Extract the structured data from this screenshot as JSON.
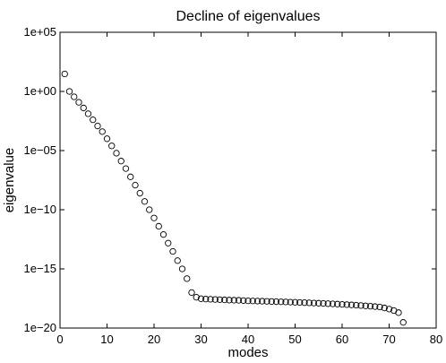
{
  "chart_data": {
    "type": "scatter",
    "title": "Decline of eigenvalues",
    "xlabel": "modes",
    "ylabel": "eigenvalue",
    "xlim": [
      0,
      80
    ],
    "ylim": [
      1e-20,
      100000
    ],
    "y_scale": "log",
    "grid": false,
    "marker": "open-circle",
    "x_ticks": [
      0,
      10,
      20,
      30,
      40,
      50,
      60,
      70,
      80
    ],
    "x_tick_labels": [
      "0",
      "10",
      "20",
      "30",
      "40",
      "50",
      "60",
      "70",
      "80"
    ],
    "y_ticks": [
      1e-20,
      1e-15,
      1e-10,
      1e-05,
      1,
      100000
    ],
    "y_tick_labels": [
      "1e−20",
      "1e−15",
      "1e−10",
      "1e−05",
      "1e+00",
      "1e+05"
    ],
    "series": [
      {
        "x": [
          1,
          2,
          3,
          4,
          5,
          6,
          7,
          8,
          9,
          10,
          11,
          12,
          13,
          14,
          15,
          16,
          17,
          18,
          19,
          20,
          21,
          22,
          23,
          24,
          25,
          26,
          27,
          28,
          29,
          30,
          31,
          32,
          33,
          34,
          35,
          36,
          37,
          38,
          39,
          40,
          41,
          42,
          43,
          44,
          45,
          46,
          47,
          48,
          49,
          50,
          51,
          52,
          53,
          54,
          55,
          56,
          57,
          58,
          59,
          60,
          61,
          62,
          63,
          64,
          65,
          66,
          67,
          68,
          69,
          70,
          71,
          72,
          73
        ],
        "y": [
          30.0,
          1.0,
          0.35,
          0.12,
          0.04,
          0.013,
          0.004,
          0.0012,
          0.0004,
          0.0001,
          2.5e-05,
          6e-06,
          1.3e-06,
          3e-07,
          6e-08,
          1.2e-08,
          2.5e-09,
          5e-10,
          1e-10,
          2e-11,
          4e-12,
          8e-13,
          1.5e-13,
          3e-14,
          5e-15,
          1e-15,
          1.5e-16,
          1e-17,
          4e-18,
          3e-18,
          2.8e-18,
          2.7e-18,
          2.6e-18,
          2.5e-18,
          2.4e-18,
          2.3e-18,
          2.25e-18,
          2.2e-18,
          2.1e-18,
          2e-18,
          1.95e-18,
          1.9e-18,
          1.85e-18,
          1.8e-18,
          1.75e-18,
          1.7e-18,
          1.65e-18,
          1.6e-18,
          1.55e-18,
          1.5e-18,
          1.45e-18,
          1.4e-18,
          1.35e-18,
          1.3e-18,
          1.25e-18,
          1.2e-18,
          1.15e-18,
          1.1e-18,
          1.05e-18,
          1e-18,
          9.5e-19,
          9e-19,
          8.5e-19,
          8e-19,
          7.5e-19,
          7e-19,
          6.5e-19,
          6e-19,
          5e-19,
          4e-19,
          3e-19,
          2e-19,
          3e-20
        ]
      }
    ]
  }
}
